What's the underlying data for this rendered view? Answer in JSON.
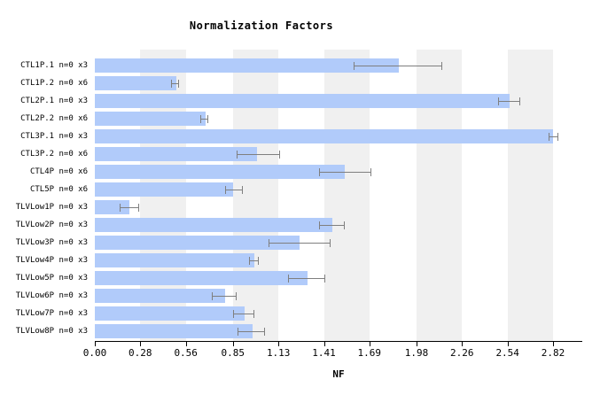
{
  "chart_data": {
    "type": "bar",
    "orientation": "horizontal",
    "title": "Normalization Factors",
    "xlabel": "NF",
    "ylabel": "",
    "xlim": [
      0,
      3.0
    ],
    "x_tick_labels": [
      "0.00",
      "0.28",
      "0.56",
      "0.85",
      "1.13",
      "1.41",
      "1.69",
      "1.98",
      "2.26",
      "2.54",
      "2.82"
    ],
    "x_tick_values": [
      0.0,
      0.28,
      0.56,
      0.85,
      1.13,
      1.41,
      1.69,
      1.98,
      2.26,
      2.54,
      2.82
    ],
    "grid": "alternating gray vertical bands between odd tick intervals",
    "legend": "none",
    "categories": [
      "CTL1P.1 n=0 x3",
      "CTL1P.2 n=0 x6",
      "CTL2P.1 n=0 x3",
      "CTL2P.2 n=0 x6",
      "CTL3P.1 n=0 x3",
      "CTL3P.2 n=0 x6",
      "CTL4P n=0 x6",
      "CTL5P n=0 x6",
      "TLVLow1P n=0 x3",
      "TLVLow2P n=0 x3",
      "TLVLow3P n=0 x3",
      "TLVLow4P n=0 x3",
      "TLVLow5P n=0 x3",
      "TLVLow6P n=0 x3",
      "TLVLow7P n=0 x3",
      "TLVLow8P n=0 x3"
    ],
    "values": [
      1.87,
      0.5,
      2.55,
      0.68,
      2.82,
      1.0,
      1.54,
      0.85,
      0.21,
      1.46,
      1.26,
      0.98,
      1.31,
      0.8,
      0.92,
      0.97
    ],
    "error_low": [
      1.59,
      0.47,
      2.48,
      0.65,
      2.79,
      0.87,
      1.38,
      0.8,
      0.15,
      1.38,
      1.07,
      0.95,
      1.19,
      0.72,
      0.85,
      0.88
    ],
    "error_high": [
      2.14,
      0.52,
      2.62,
      0.7,
      2.85,
      1.14,
      1.7,
      0.91,
      0.27,
      1.54,
      1.45,
      1.01,
      1.42,
      0.87,
      0.98,
      1.05
    ],
    "colors": {
      "bar": "#b1cbfa",
      "error_bar": "#7f7f7f",
      "band": "#f0f0f0",
      "text": "#000000",
      "background": "#ffffff"
    }
  }
}
